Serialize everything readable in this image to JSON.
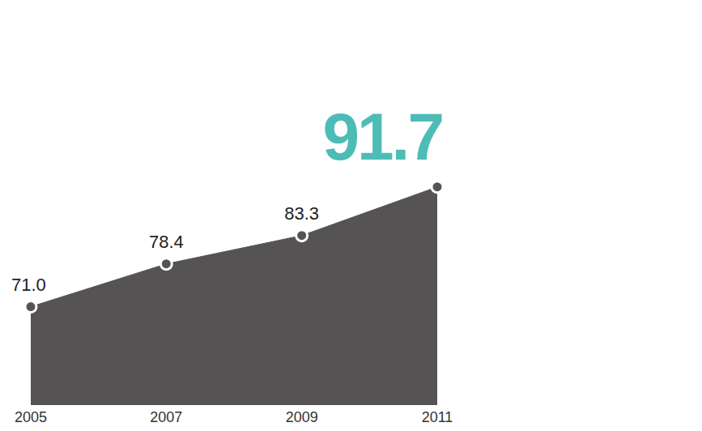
{
  "chart_data": {
    "type": "area",
    "categories": [
      "2005",
      "2007",
      "2009",
      "2011"
    ],
    "values": [
      71.0,
      78.4,
      83.3,
      91.7
    ],
    "value_labels": [
      "71.0",
      "78.4",
      "83.3",
      "91.7"
    ],
    "color": "#555354",
    "ylim": [
      54,
      103
    ],
    "data_labels": true,
    "tick_labels": "x",
    "grid": false
  }
}
